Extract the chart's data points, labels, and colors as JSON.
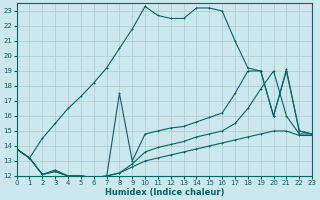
{
  "xlabel": "Humidex (Indice chaleur)",
  "bg_color": "#cce8ec",
  "line_color": "#006666",
  "grid_color": "#aacccc",
  "xlim": [
    0,
    23
  ],
  "ylim": [
    12,
    23.5
  ],
  "xticks": [
    0,
    1,
    2,
    3,
    4,
    5,
    6,
    7,
    8,
    9,
    10,
    11,
    12,
    13,
    14,
    15,
    16,
    17,
    18,
    19,
    20,
    21,
    22,
    23
  ],
  "yticks": [
    12,
    13,
    14,
    15,
    16,
    17,
    18,
    19,
    20,
    21,
    22,
    23
  ],
  "curve1_x": [
    0,
    1,
    2,
    3,
    4,
    5,
    6,
    7,
    8,
    9,
    10,
    11,
    12,
    13,
    14,
    15,
    16,
    17,
    18,
    19,
    20,
    21,
    22,
    23
  ],
  "curve1_y": [
    13.8,
    13.2,
    14.5,
    15.5,
    16.5,
    17.3,
    18.2,
    19.2,
    20.5,
    21.8,
    23.3,
    22.7,
    22.5,
    22.5,
    23.2,
    23.2,
    23.0,
    21.0,
    19.2,
    19.0,
    16.0,
    19.1,
    15.0,
    14.8
  ],
  "curve2_x": [
    0,
    1,
    2,
    3,
    4,
    5,
    6,
    7,
    8,
    9,
    10,
    11,
    12,
    13,
    14,
    15,
    16,
    17,
    18,
    19,
    20,
    21,
    22,
    23
  ],
  "curve2_y": [
    13.8,
    13.2,
    12.1,
    12.4,
    12.0,
    12.0,
    11.9,
    11.9,
    17.5,
    13.0,
    14.8,
    15.0,
    15.2,
    15.3,
    15.6,
    15.9,
    16.2,
    17.5,
    19.0,
    19.0,
    16.0,
    19.0,
    15.0,
    14.8
  ],
  "curve3_x": [
    0,
    1,
    2,
    3,
    4,
    5,
    6,
    7,
    8,
    9,
    10,
    11,
    12,
    13,
    14,
    15,
    16,
    17,
    18,
    19,
    20,
    21,
    22,
    23
  ],
  "curve3_y": [
    13.8,
    13.2,
    12.1,
    12.3,
    12.0,
    12.0,
    11.9,
    12.0,
    12.2,
    12.8,
    13.6,
    13.9,
    14.1,
    14.3,
    14.6,
    14.8,
    15.0,
    15.5,
    16.5,
    17.8,
    19.0,
    16.0,
    14.8,
    14.8
  ],
  "curve4_x": [
    0,
    1,
    2,
    3,
    4,
    5,
    6,
    7,
    8,
    9,
    10,
    11,
    12,
    13,
    14,
    15,
    16,
    17,
    18,
    19,
    20,
    21,
    22,
    23
  ],
  "curve4_y": [
    13.8,
    13.2,
    12.1,
    12.3,
    12.0,
    12.0,
    11.9,
    12.0,
    12.2,
    12.6,
    13.0,
    13.2,
    13.4,
    13.6,
    13.8,
    14.0,
    14.2,
    14.4,
    14.6,
    14.8,
    15.0,
    15.0,
    14.7,
    14.7
  ]
}
